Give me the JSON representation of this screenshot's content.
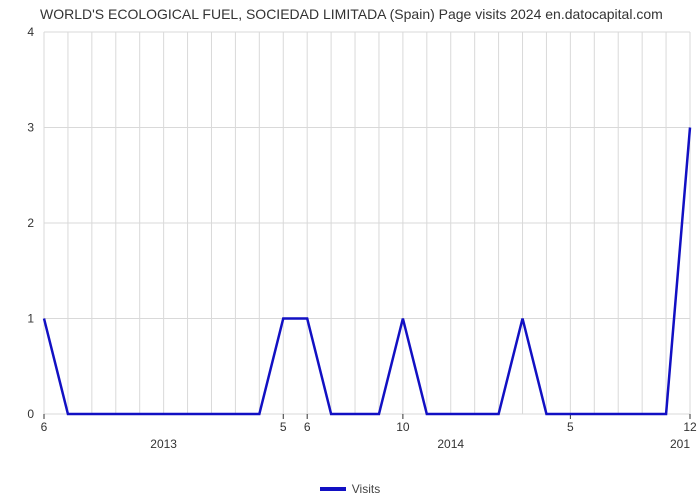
{
  "chart": {
    "type": "line",
    "title": "WORLD'S ECOLOGICAL FUEL, SOCIEDAD LIMITADA (Spain) Page visits 2024 en.datocapital.com",
    "title_fontsize": 14,
    "title_color": "#333333",
    "background_color": "#ffffff",
    "grid_color": "#d9d9d9",
    "grid_width": 1,
    "axis_color": "#333333",
    "tick_color": "#333333",
    "tick_fontsize": 12,
    "line_color": "#1210c3",
    "line_width": 2.5,
    "ylim": [
      0,
      4
    ],
    "yticks": [
      0,
      1,
      2,
      3,
      4
    ],
    "x_count": 28,
    "xticks": [
      {
        "i": 0,
        "label": "6"
      },
      {
        "i": 10,
        "label": "5"
      },
      {
        "i": 11,
        "label": "6"
      },
      {
        "i": 15,
        "label": "10"
      },
      {
        "i": 22,
        "label": "5"
      },
      {
        "i": 27,
        "label": "12"
      }
    ],
    "x_year_labels": [
      {
        "i": 5,
        "label": "2013"
      },
      {
        "i": 17,
        "label": "2014"
      },
      {
        "i": 27,
        "label": "201",
        "align": "end"
      }
    ],
    "values": [
      1,
      0,
      0,
      0,
      0,
      0,
      0,
      0,
      0,
      0,
      1,
      1,
      0,
      0,
      0,
      1,
      0,
      0,
      0,
      0,
      1,
      0,
      0,
      0,
      0,
      0,
      0,
      3
    ],
    "legend": {
      "label": "Visits",
      "swatch_color": "#1210c3"
    }
  }
}
